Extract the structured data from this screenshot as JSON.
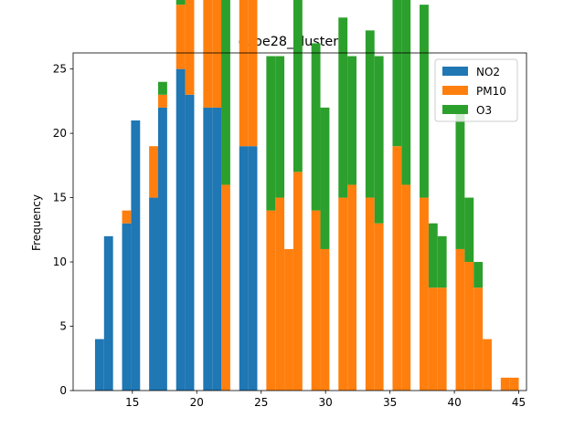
{
  "chart_data": {
    "type": "bar",
    "title": "cube28_cluster0",
    "xlabel": "",
    "ylabel": "Frequency",
    "xlim": [
      10.4,
      45.6
    ],
    "ylim": [
      0,
      26.25
    ],
    "xticks": [
      15,
      20,
      25,
      30,
      35,
      40,
      45
    ],
    "yticks": [
      0,
      5,
      10,
      15,
      20,
      25
    ],
    "bin_width": 0.7,
    "stacked": true,
    "legend_position": "top-right",
    "series": [
      {
        "name": "NO2",
        "color": "#1f77b4",
        "bins": [
          {
            "x": 12.1,
            "value": 4
          },
          {
            "x": 12.8,
            "value": 12
          },
          {
            "x": 14.2,
            "value": 13
          },
          {
            "x": 14.9,
            "value": 21
          },
          {
            "x": 16.3,
            "value": 15
          },
          {
            "x": 17.0,
            "value": 22
          },
          {
            "x": 18.4,
            "value": 25
          },
          {
            "x": 19.1,
            "value": 23
          },
          {
            "x": 20.5,
            "value": 22
          },
          {
            "x": 21.2,
            "value": 22
          },
          {
            "x": 23.3,
            "value": 19
          },
          {
            "x": 24.0,
            "value": 19
          }
        ]
      },
      {
        "name": "PM10",
        "color": "#ff7f0e",
        "bins": [
          {
            "x": 14.2,
            "value": 1
          },
          {
            "x": 16.3,
            "value": 4
          },
          {
            "x": 17.0,
            "value": 1
          },
          {
            "x": 18.4,
            "value": 5
          },
          {
            "x": 19.1,
            "value": 10
          },
          {
            "x": 20.5,
            "value": 15
          },
          {
            "x": 21.2,
            "value": 13
          },
          {
            "x": 21.9,
            "value": 16
          },
          {
            "x": 23.3,
            "value": 17
          },
          {
            "x": 24.0,
            "value": 16
          },
          {
            "x": 25.4,
            "value": 14
          },
          {
            "x": 26.1,
            "value": 15
          },
          {
            "x": 26.8,
            "value": 11
          },
          {
            "x": 27.5,
            "value": 17
          },
          {
            "x": 28.9,
            "value": 14
          },
          {
            "x": 29.6,
            "value": 11
          },
          {
            "x": 31.0,
            "value": 15
          },
          {
            "x": 31.7,
            "value": 16
          },
          {
            "x": 33.1,
            "value": 15
          },
          {
            "x": 33.8,
            "value": 13
          },
          {
            "x": 35.2,
            "value": 19
          },
          {
            "x": 35.9,
            "value": 16
          },
          {
            "x": 37.3,
            "value": 15
          },
          {
            "x": 38.0,
            "value": 8
          },
          {
            "x": 38.7,
            "value": 8
          },
          {
            "x": 40.1,
            "value": 11
          },
          {
            "x": 40.8,
            "value": 10
          },
          {
            "x": 41.5,
            "value": 8
          },
          {
            "x": 42.2,
            "value": 4
          },
          {
            "x": 43.6,
            "value": 1
          },
          {
            "x": 44.3,
            "value": 1
          }
        ]
      },
      {
        "name": "O3",
        "color": "#2ca02c",
        "bins": [
          {
            "x": 17.0,
            "value": 1
          },
          {
            "x": 18.4,
            "value": 2
          },
          {
            "x": 19.1,
            "value": 8
          },
          {
            "x": 20.5,
            "value": 15
          },
          {
            "x": 21.2,
            "value": 13
          },
          {
            "x": 21.9,
            "value": 16
          },
          {
            "x": 23.3,
            "value": 15
          },
          {
            "x": 24.0,
            "value": 16
          },
          {
            "x": 25.4,
            "value": 12
          },
          {
            "x": 26.1,
            "value": 11
          },
          {
            "x": 27.5,
            "value": 17
          },
          {
            "x": 28.9,
            "value": 13
          },
          {
            "x": 29.6,
            "value": 11
          },
          {
            "x": 31.0,
            "value": 14
          },
          {
            "x": 31.7,
            "value": 10
          },
          {
            "x": 33.1,
            "value": 13
          },
          {
            "x": 33.8,
            "value": 13
          },
          {
            "x": 35.2,
            "value": 19
          },
          {
            "x": 35.9,
            "value": 16
          },
          {
            "x": 37.3,
            "value": 15
          },
          {
            "x": 38.0,
            "value": 5
          },
          {
            "x": 38.7,
            "value": 4
          },
          {
            "x": 40.1,
            "value": 11
          },
          {
            "x": 40.8,
            "value": 5
          },
          {
            "x": 41.5,
            "value": 2
          }
        ]
      }
    ]
  }
}
